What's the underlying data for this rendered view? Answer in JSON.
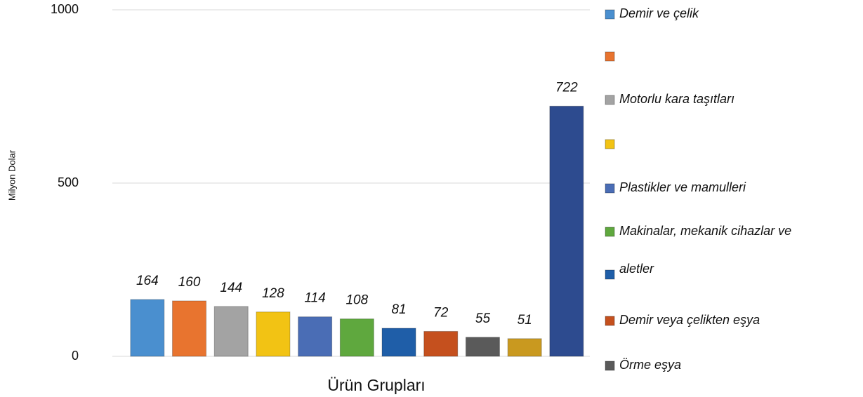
{
  "chart_data": {
    "type": "bar",
    "y_label": "Milyon Dolar",
    "x_label": "Ürün Grupları",
    "values": [
      164,
      160,
      144,
      128,
      114,
      108,
      81,
      72,
      55,
      51,
      722
    ],
    "colors": [
      "#4a8fcf",
      "#e8742f",
      "#a3a3a3",
      "#f2c314",
      "#4a6db5",
      "#5fa83e",
      "#1f5ea8",
      "#c5501e",
      "#5a5a5a",
      "#c9991f",
      "#2d4b8f"
    ],
    "legend": [
      {
        "name": "Demir ve çelik",
        "color": "#4a8fcf"
      },
      {
        "name": null,
        "color": "#e8742f"
      },
      {
        "name": "Motorlu kara taşıtları",
        "color": "#a3a3a3"
      },
      {
        "name": null,
        "color": "#f2c314"
      },
      {
        "name": "Plastikler ve mamulleri",
        "color": "#4a6db5"
      },
      {
        "name": "Makinalar, mekanik cihazlar ve",
        "color": "#5fa83e"
      },
      {
        "name": "aletler",
        "color": "#1f5ea8"
      },
      {
        "name": "Demir veya çelikten eşya",
        "color": "#c5501e"
      },
      {
        "name": "Örme eşya",
        "color": "#5a5a5a"
      }
    ],
    "ylim": [
      0,
      1000
    ],
    "yticks": [
      0,
      500,
      1000
    ],
    "grid": true
  }
}
